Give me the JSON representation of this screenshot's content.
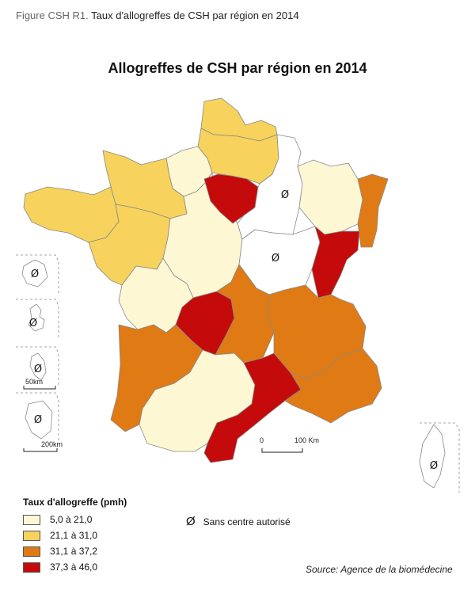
{
  "caption": {
    "label": "Figure CSH R1.",
    "text": "Taux d'allogreffes de CSH par région en 2014"
  },
  "title": "Allogreffes de CSH par région en 2014",
  "colors": {
    "c1": "#fdf7d4",
    "c2": "#f7d25c",
    "c3": "#e07a14",
    "c4": "#c40a0a",
    "none": "#ffffff",
    "border": "#8a8a8a"
  },
  "legend": {
    "title": "Taux d'allogreffe (pmh)",
    "classes": [
      {
        "label": "5,0 à 21,0",
        "color": "#fdf7d4"
      },
      {
        "label": "21,1 à 31,0",
        "color": "#f7d25c"
      },
      {
        "label": "31,1 à 37,2",
        "color": "#e07a14"
      },
      {
        "label": "37,3 à 46,0",
        "color": "#c40a0a"
      }
    ],
    "no_center": {
      "symbol": "Ø",
      "label": "Sans centre autorisé"
    }
  },
  "scale_main": {
    "zero": "0",
    "end": "100 Km"
  },
  "scale_insets": [
    "50km",
    "200km"
  ],
  "source": "Source: Agence de la biomédecine",
  "regions": [
    {
      "name": "Nord-Pas-de-Calais",
      "class": 2
    },
    {
      "name": "Picardie",
      "class": 2
    },
    {
      "name": "Haute-Normandie",
      "class": 1
    },
    {
      "name": "Basse-Normandie",
      "class": 2
    },
    {
      "name": "Bretagne",
      "class": 2
    },
    {
      "name": "Pays de la Loire",
      "class": 2
    },
    {
      "name": "Centre",
      "class": 1
    },
    {
      "name": "Île-de-France",
      "class": 4
    },
    {
      "name": "Champagne-Ardenne",
      "class": 0
    },
    {
      "name": "Lorraine",
      "class": 1
    },
    {
      "name": "Alsace",
      "class": 3
    },
    {
      "name": "Bourgogne",
      "class": 0
    },
    {
      "name": "Franche-Comté",
      "class": 4
    },
    {
      "name": "Poitou-Charentes",
      "class": 1
    },
    {
      "name": "Limousin",
      "class": 4
    },
    {
      "name": "Auvergne",
      "class": 3
    },
    {
      "name": "Rhône-Alpes",
      "class": 3
    },
    {
      "name": "Aquitaine",
      "class": 3
    },
    {
      "name": "Midi-Pyrénées",
      "class": 1
    },
    {
      "name": "Languedoc-Roussillon",
      "class": 4
    },
    {
      "name": "Provence-Alpes-Côte d'Azur",
      "class": 3
    },
    {
      "name": "Corse",
      "class": 0
    },
    {
      "name": "Réunion",
      "class": 0
    },
    {
      "name": "Guadeloupe",
      "class": 0
    },
    {
      "name": "Martinique",
      "class": 0
    },
    {
      "name": "Guyane",
      "class": 0
    }
  ]
}
